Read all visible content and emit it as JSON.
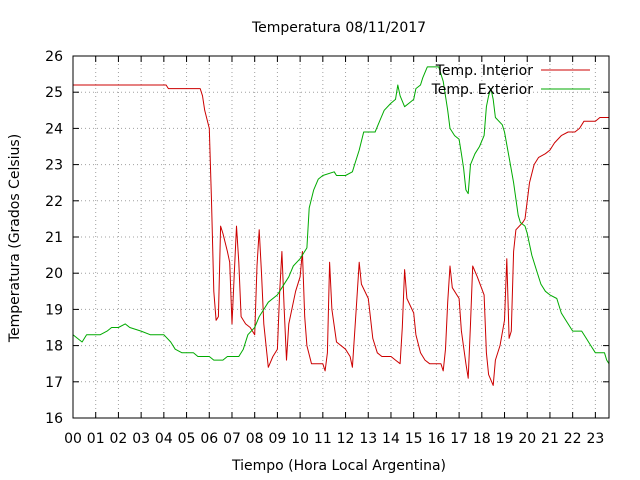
{
  "chart_data": {
    "type": "line",
    "title": "Temperatura 08/11/2017",
    "xlabel": "Tiempo (Hora Local Argentina)",
    "ylabel": "Temperatura (Grados Celsius)",
    "xlim": [
      0,
      23.6
    ],
    "ylim": [
      16,
      26
    ],
    "xticks": [
      0,
      1,
      2,
      3,
      4,
      5,
      6,
      7,
      8,
      9,
      10,
      11,
      12,
      13,
      14,
      15,
      16,
      17,
      18,
      19,
      20,
      21,
      22,
      23
    ],
    "xtick_labels": [
      "00",
      "01",
      "02",
      "03",
      "04",
      "05",
      "06",
      "07",
      "08",
      "09",
      "10",
      "11",
      "12",
      "13",
      "14",
      "15",
      "16",
      "17",
      "18",
      "19",
      "20",
      "21",
      "22",
      "23"
    ],
    "yticks": [
      16,
      17,
      18,
      19,
      20,
      21,
      22,
      23,
      24,
      25,
      26
    ],
    "grid": true,
    "legend_position": "top-right",
    "series": [
      {
        "name": "Temp. Interior",
        "color": "#cc0000",
        "points": [
          [
            0.0,
            25.2
          ],
          [
            4.1,
            25.2
          ],
          [
            4.2,
            25.1
          ],
          [
            5.6,
            25.1
          ],
          [
            5.7,
            24.9
          ],
          [
            5.8,
            24.5
          ],
          [
            6.0,
            24.0
          ],
          [
            6.1,
            22.0
          ],
          [
            6.2,
            19.5
          ],
          [
            6.3,
            18.7
          ],
          [
            6.4,
            18.8
          ],
          [
            6.5,
            21.3
          ],
          [
            6.6,
            21.1
          ],
          [
            6.8,
            20.6
          ],
          [
            6.9,
            20.3
          ],
          [
            7.0,
            18.6
          ],
          [
            7.1,
            20.0
          ],
          [
            7.2,
            21.3
          ],
          [
            7.3,
            20.3
          ],
          [
            7.4,
            18.8
          ],
          [
            7.6,
            18.6
          ],
          [
            7.8,
            18.5
          ],
          [
            8.0,
            18.3
          ],
          [
            8.1,
            20.2
          ],
          [
            8.2,
            21.2
          ],
          [
            8.3,
            20.0
          ],
          [
            8.4,
            18.6
          ],
          [
            8.6,
            17.4
          ],
          [
            8.8,
            17.7
          ],
          [
            9.0,
            17.9
          ],
          [
            9.1,
            19.5
          ],
          [
            9.2,
            20.6
          ],
          [
            9.3,
            19.0
          ],
          [
            9.4,
            17.6
          ],
          [
            9.5,
            18.6
          ],
          [
            9.8,
            19.5
          ],
          [
            10.0,
            19.9
          ],
          [
            10.1,
            20.6
          ],
          [
            10.2,
            18.8
          ],
          [
            10.3,
            18.0
          ],
          [
            10.5,
            17.5
          ],
          [
            11.0,
            17.5
          ],
          [
            11.1,
            17.3
          ],
          [
            11.2,
            17.8
          ],
          [
            11.3,
            20.3
          ],
          [
            11.4,
            19.0
          ],
          [
            11.6,
            18.1
          ],
          [
            12.0,
            17.9
          ],
          [
            12.2,
            17.7
          ],
          [
            12.3,
            17.4
          ],
          [
            12.5,
            19.3
          ],
          [
            12.6,
            20.3
          ],
          [
            12.7,
            19.7
          ],
          [
            13.0,
            19.3
          ],
          [
            13.2,
            18.2
          ],
          [
            13.4,
            17.8
          ],
          [
            13.6,
            17.7
          ],
          [
            14.0,
            17.7
          ],
          [
            14.2,
            17.6
          ],
          [
            14.4,
            17.5
          ],
          [
            14.5,
            18.5
          ],
          [
            14.6,
            20.1
          ],
          [
            14.7,
            19.3
          ],
          [
            15.0,
            18.9
          ],
          [
            15.1,
            18.3
          ],
          [
            15.3,
            17.8
          ],
          [
            15.5,
            17.6
          ],
          [
            15.7,
            17.5
          ],
          [
            16.0,
            17.5
          ],
          [
            16.2,
            17.5
          ],
          [
            16.3,
            17.3
          ],
          [
            16.4,
            17.9
          ],
          [
            16.5,
            19.2
          ],
          [
            16.6,
            20.2
          ],
          [
            16.7,
            19.6
          ],
          [
            17.0,
            19.3
          ],
          [
            17.1,
            18.4
          ],
          [
            17.3,
            17.5
          ],
          [
            17.4,
            17.1
          ],
          [
            17.5,
            18.6
          ],
          [
            17.6,
            20.2
          ],
          [
            17.8,
            19.9
          ],
          [
            18.1,
            19.4
          ],
          [
            18.2,
            17.8
          ],
          [
            18.3,
            17.2
          ],
          [
            18.5,
            16.9
          ],
          [
            18.6,
            17.6
          ],
          [
            18.8,
            18.0
          ],
          [
            19.0,
            18.7
          ],
          [
            19.1,
            20.4
          ],
          [
            19.2,
            18.2
          ],
          [
            19.3,
            18.4
          ],
          [
            19.4,
            20.6
          ],
          [
            19.5,
            21.2
          ],
          [
            19.8,
            21.4
          ],
          [
            19.9,
            21.5
          ],
          [
            20.1,
            22.5
          ],
          [
            20.3,
            23.0
          ],
          [
            20.5,
            23.2
          ],
          [
            20.8,
            23.3
          ],
          [
            21.0,
            23.4
          ],
          [
            21.2,
            23.6
          ],
          [
            21.5,
            23.8
          ],
          [
            21.8,
            23.9
          ],
          [
            22.1,
            23.9
          ],
          [
            22.3,
            24.0
          ],
          [
            22.5,
            24.2
          ],
          [
            23.0,
            24.2
          ],
          [
            23.2,
            24.3
          ],
          [
            23.6,
            24.3
          ]
        ]
      },
      {
        "name": "Temp. Exterior",
        "color": "#00aa00",
        "points": [
          [
            0.0,
            18.3
          ],
          [
            0.2,
            18.2
          ],
          [
            0.4,
            18.1
          ],
          [
            0.6,
            18.3
          ],
          [
            1.2,
            18.3
          ],
          [
            1.5,
            18.4
          ],
          [
            1.7,
            18.5
          ],
          [
            2.0,
            18.5
          ],
          [
            2.3,
            18.6
          ],
          [
            2.5,
            18.5
          ],
          [
            3.0,
            18.4
          ],
          [
            3.4,
            18.3
          ],
          [
            4.0,
            18.3
          ],
          [
            4.3,
            18.1
          ],
          [
            4.5,
            17.9
          ],
          [
            4.8,
            17.8
          ],
          [
            5.3,
            17.8
          ],
          [
            5.5,
            17.7
          ],
          [
            6.0,
            17.7
          ],
          [
            6.2,
            17.6
          ],
          [
            6.6,
            17.6
          ],
          [
            6.8,
            17.7
          ],
          [
            7.3,
            17.7
          ],
          [
            7.5,
            17.9
          ],
          [
            7.7,
            18.3
          ],
          [
            8.0,
            18.5
          ],
          [
            8.2,
            18.8
          ],
          [
            8.4,
            19.0
          ],
          [
            8.6,
            19.2
          ],
          [
            9.0,
            19.4
          ],
          [
            9.2,
            19.6
          ],
          [
            9.5,
            19.9
          ],
          [
            9.7,
            20.2
          ],
          [
            10.0,
            20.4
          ],
          [
            10.3,
            20.7
          ],
          [
            10.4,
            21.8
          ],
          [
            10.6,
            22.3
          ],
          [
            10.8,
            22.6
          ],
          [
            11.0,
            22.7
          ],
          [
            11.5,
            22.8
          ],
          [
            11.6,
            22.7
          ],
          [
            12.0,
            22.7
          ],
          [
            12.3,
            22.8
          ],
          [
            12.4,
            23.0
          ],
          [
            12.6,
            23.4
          ],
          [
            12.8,
            23.9
          ],
          [
            13.3,
            23.9
          ],
          [
            13.5,
            24.2
          ],
          [
            13.7,
            24.5
          ],
          [
            14.0,
            24.7
          ],
          [
            14.2,
            24.8
          ],
          [
            14.3,
            25.2
          ],
          [
            14.4,
            24.9
          ],
          [
            14.6,
            24.6
          ],
          [
            14.8,
            24.7
          ],
          [
            15.0,
            24.8
          ],
          [
            15.1,
            25.1
          ],
          [
            15.3,
            25.2
          ],
          [
            15.4,
            25.4
          ],
          [
            15.6,
            25.7
          ],
          [
            16.1,
            25.7
          ],
          [
            16.3,
            25.3
          ],
          [
            16.5,
            24.5
          ],
          [
            16.6,
            24.0
          ],
          [
            16.8,
            23.8
          ],
          [
            17.0,
            23.7
          ],
          [
            17.1,
            23.3
          ],
          [
            17.2,
            22.9
          ],
          [
            17.3,
            22.3
          ],
          [
            17.4,
            22.2
          ],
          [
            17.5,
            23.0
          ],
          [
            17.7,
            23.3
          ],
          [
            17.9,
            23.5
          ],
          [
            18.1,
            23.8
          ],
          [
            18.2,
            24.6
          ],
          [
            18.3,
            24.9
          ],
          [
            18.4,
            25.1
          ],
          [
            18.5,
            24.8
          ],
          [
            18.6,
            24.3
          ],
          [
            18.9,
            24.1
          ],
          [
            19.0,
            23.9
          ],
          [
            19.2,
            23.2
          ],
          [
            19.4,
            22.5
          ],
          [
            19.6,
            21.6
          ],
          [
            19.7,
            21.4
          ],
          [
            19.9,
            21.3
          ],
          [
            20.0,
            21.1
          ],
          [
            20.2,
            20.5
          ],
          [
            20.4,
            20.1
          ],
          [
            20.6,
            19.7
          ],
          [
            20.8,
            19.5
          ],
          [
            21.0,
            19.4
          ],
          [
            21.3,
            19.3
          ],
          [
            21.5,
            18.9
          ],
          [
            21.7,
            18.7
          ],
          [
            22.0,
            18.4
          ],
          [
            22.4,
            18.4
          ],
          [
            22.6,
            18.2
          ],
          [
            22.8,
            18.0
          ],
          [
            23.0,
            17.8
          ],
          [
            23.4,
            17.8
          ],
          [
            23.5,
            17.6
          ],
          [
            23.6,
            17.5
          ]
        ]
      }
    ]
  }
}
